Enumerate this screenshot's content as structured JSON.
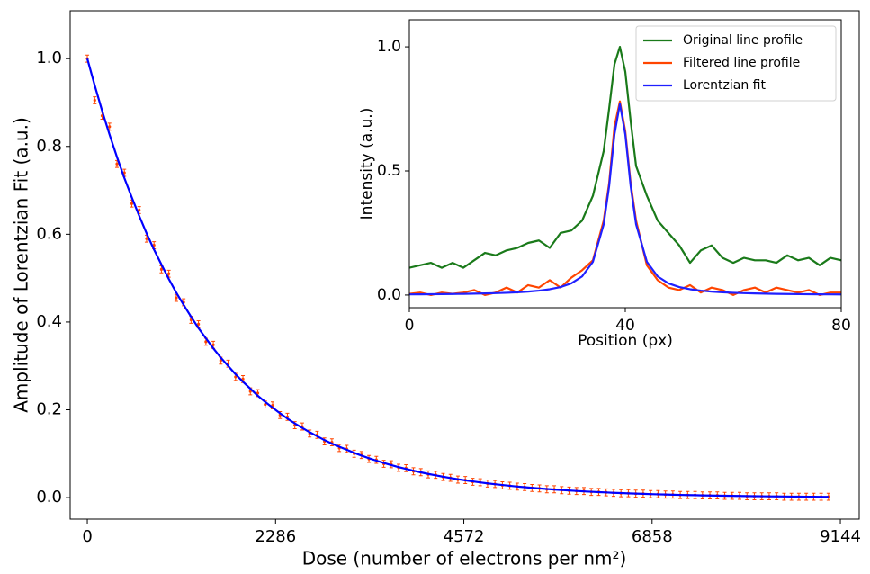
{
  "chart_data": [
    {
      "type": "scatter",
      "x_label": "Dose (number of electrons per nm²)",
      "y_label": "Amplitude of Lorentzian Fit (a.u.)",
      "x": [
        0,
        90,
        180,
        270,
        360,
        450,
        540,
        630,
        720,
        810,
        900,
        990,
        1080,
        1170,
        1260,
        1350,
        1440,
        1530,
        1620,
        1710,
        1800,
        1890,
        1980,
        2070,
        2160,
        2250,
        2340,
        2430,
        2520,
        2610,
        2700,
        2790,
        2880,
        2970,
        3060,
        3150,
        3240,
        3330,
        3420,
        3510,
        3600,
        3690,
        3780,
        3870,
        3960,
        4050,
        4140,
        4230,
        4320,
        4410,
        4500,
        4590,
        4680,
        4770,
        4860,
        4950,
        5040,
        5130,
        5220,
        5310,
        5400,
        5490,
        5580,
        5670,
        5760,
        5850,
        5940,
        6030,
        6120,
        6210,
        6300,
        6390,
        6480,
        6570,
        6660,
        6750,
        6840,
        6930,
        7020,
        7110,
        7200,
        7290,
        7380,
        7470,
        7560,
        7650,
        7740,
        7830,
        7920,
        8010,
        8100,
        8190,
        8280,
        8370,
        8460,
        8550,
        8640,
        8730,
        8820,
        8910,
        9000
      ],
      "series": [
        {
          "kind": "errorbar",
          "color": "#ff4500",
          "error": 0.008,
          "values": [
            1.0,
            0.905,
            0.87,
            0.845,
            0.76,
            0.74,
            0.67,
            0.655,
            0.59,
            0.575,
            0.52,
            0.51,
            0.455,
            0.445,
            0.405,
            0.395,
            0.355,
            0.348,
            0.312,
            0.305,
            0.275,
            0.27,
            0.242,
            0.238,
            0.212,
            0.21,
            0.188,
            0.184,
            0.165,
            0.162,
            0.146,
            0.143,
            0.128,
            0.126,
            0.113,
            0.111,
            0.1,
            0.097,
            0.088,
            0.086,
            0.077,
            0.076,
            0.068,
            0.067,
            0.06,
            0.058,
            0.053,
            0.052,
            0.047,
            0.045,
            0.041,
            0.04,
            0.036,
            0.035,
            0.032,
            0.031,
            0.028,
            0.027,
            0.025,
            0.024,
            0.022,
            0.021,
            0.019,
            0.019,
            0.017,
            0.016,
            0.015,
            0.015,
            0.013,
            0.013,
            0.012,
            0.011,
            0.01,
            0.01,
            0.009,
            0.009,
            0.008,
            0.008,
            0.007,
            0.007,
            0.006,
            0.006,
            0.006,
            0.005,
            0.005,
            0.005,
            0.004,
            0.004,
            0.004,
            0.003,
            0.003,
            0.003,
            0.003,
            0.003,
            0.002,
            0.002,
            0.002,
            0.002,
            0.002,
            0.002,
            0.002
          ]
        },
        {
          "kind": "line",
          "color": "#0000ff",
          "values": [
            1.0,
            0.939,
            0.881,
            0.827,
            0.776,
            0.728,
            0.684,
            0.642,
            0.602,
            0.565,
            0.531,
            0.498,
            0.467,
            0.439,
            0.412,
            0.386,
            0.363,
            0.34,
            0.319,
            0.3,
            0.281,
            0.264,
            0.248,
            0.232,
            0.218,
            0.205,
            0.192,
            0.18,
            0.169,
            0.159,
            0.149,
            0.14,
            0.131,
            0.123,
            0.116,
            0.109,
            0.102,
            0.0956,
            0.0897,
            0.0842,
            0.079,
            0.0742,
            0.0696,
            0.0653,
            0.0613,
            0.0576,
            0.054,
            0.0507,
            0.0476,
            0.0447,
            0.0419,
            0.0394,
            0.0369,
            0.0347,
            0.0325,
            0.0305,
            0.0287,
            0.0269,
            0.0252,
            0.0237,
            0.0222,
            0.0209,
            0.0196,
            0.0184,
            0.0172,
            0.0162,
            0.0152,
            0.0142,
            0.0134,
            0.0125,
            0.0118,
            0.011,
            0.0104,
            0.0097,
            0.0091,
            0.0086,
            0.008,
            0.0075,
            0.0071,
            0.0066,
            0.0062,
            0.0058,
            0.0055,
            0.0051,
            0.0048,
            0.0045,
            0.0043,
            0.004,
            0.0037,
            0.0035,
            0.0033,
            0.0031,
            0.0029,
            0.0027,
            0.0026,
            0.0024,
            0.0023,
            0.0021,
            0.002,
            0.0019,
            0.0018
          ]
        }
      ],
      "xlim": [
        -208,
        9373
      ],
      "ylim": [
        -0.049,
        1.109
      ],
      "xticks": [
        0,
        2286,
        4572,
        6858,
        9144
      ],
      "yticks": [
        {
          "value": 0,
          "label": "0.0"
        },
        0.2,
        0.4,
        0.6,
        0.8,
        {
          "value": 1,
          "label": "1.0"
        }
      ]
    },
    {
      "type": "line",
      "x_label": "Position (px)",
      "y_label": "Intensity (a.u.)",
      "x": [
        0,
        2,
        4,
        6,
        8,
        10,
        12,
        14,
        16,
        18,
        20,
        22,
        24,
        26,
        28,
        30,
        32,
        34,
        36,
        37,
        38,
        39,
        40,
        41,
        42,
        44,
        46,
        48,
        50,
        52,
        54,
        56,
        58,
        60,
        62,
        64,
        66,
        68,
        70,
        72,
        74,
        76,
        78,
        80
      ],
      "series": [
        {
          "name": "Original line profile",
          "color": "#1a7a1a",
          "values": [
            0.11,
            0.12,
            0.13,
            0.11,
            0.13,
            0.11,
            0.14,
            0.17,
            0.16,
            0.18,
            0.19,
            0.21,
            0.22,
            0.19,
            0.25,
            0.26,
            0.3,
            0.4,
            0.58,
            0.75,
            0.93,
            1.0,
            0.9,
            0.7,
            0.52,
            0.4,
            0.3,
            0.25,
            0.2,
            0.13,
            0.18,
            0.2,
            0.15,
            0.13,
            0.15,
            0.14,
            0.14,
            0.13,
            0.16,
            0.14,
            0.15,
            0.12,
            0.15,
            0.14
          ]
        },
        {
          "name": "Filtered line profile",
          "color": "#ff4500",
          "values": [
            0.005,
            0.01,
            0.0,
            0.01,
            0.005,
            0.01,
            0.02,
            0.0,
            0.01,
            0.03,
            0.01,
            0.04,
            0.03,
            0.06,
            0.03,
            0.07,
            0.1,
            0.14,
            0.3,
            0.45,
            0.68,
            0.78,
            0.66,
            0.45,
            0.3,
            0.12,
            0.06,
            0.03,
            0.02,
            0.04,
            0.01,
            0.03,
            0.02,
            0.0,
            0.02,
            0.03,
            0.01,
            0.03,
            0.02,
            0.01,
            0.02,
            0.0,
            0.01,
            0.01
          ]
        },
        {
          "name": "Lorentzian fit",
          "color": "#2020ff",
          "values": [
            0.0027,
            0.003,
            0.0033,
            0.0037,
            0.0042,
            0.0048,
            0.0056,
            0.0065,
            0.0076,
            0.0091,
            0.0111,
            0.0138,
            0.0177,
            0.0234,
            0.0322,
            0.0472,
            0.075,
            0.134,
            0.285,
            0.438,
            0.648,
            0.77,
            0.648,
            0.438,
            0.285,
            0.134,
            0.075,
            0.0472,
            0.0322,
            0.0234,
            0.0177,
            0.0138,
            0.0111,
            0.0091,
            0.0076,
            0.0065,
            0.0056,
            0.0048,
            0.0042,
            0.0037,
            0.0033,
            0.003,
            0.0027,
            0.0025
          ]
        }
      ],
      "xlim": [
        0,
        80
      ],
      "ylim": [
        -0.051,
        1.109
      ],
      "xticks": [
        0,
        40,
        80
      ],
      "yticks": [
        {
          "value": 0,
          "label": "0.0"
        },
        0.5,
        {
          "value": 1,
          "label": "1.0"
        }
      ],
      "legend": "upper right"
    }
  ]
}
